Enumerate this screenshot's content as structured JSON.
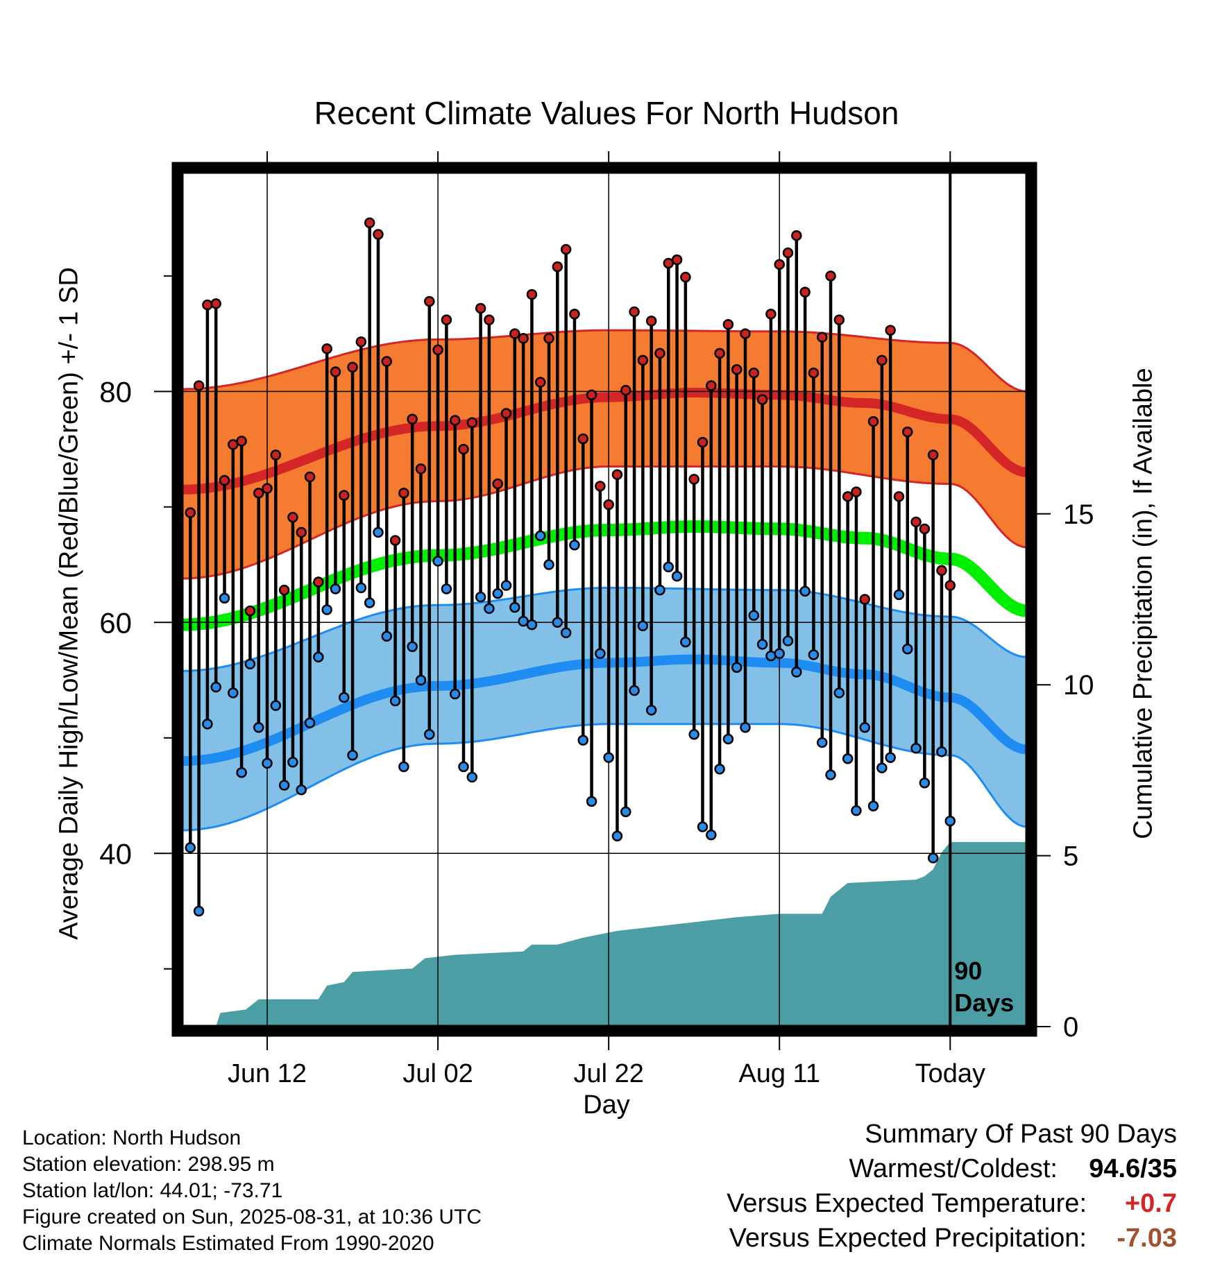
{
  "chart_data": {
    "type": "scatter",
    "title": "Recent Climate Values For North Hudson",
    "xlabel": "Day",
    "ylabel_left": "Average Daily High/Low/Mean (Red/Blue/Green) +/- 1 SD",
    "ylabel_right": "Cumulative Precipitation (in), If Available",
    "x_tick_labels": [
      "Jun 12",
      "Jul 02",
      "Jul 22",
      "Aug 11",
      "Today"
    ],
    "y_left_ticks": [
      40,
      60,
      80
    ],
    "y_right_ticks": [
      0,
      5,
      10,
      15
    ],
    "marker_label": [
      "90",
      "Days"
    ],
    "x_range_days": [
      -90,
      9
    ],
    "y_left_range": [
      25,
      99
    ],
    "y_right_range": [
      0,
      25
    ],
    "grid": true,
    "daily_high": [
      69.5,
      80.5,
      87.5,
      87.6,
      72.3,
      75.4,
      75.7,
      61.0,
      71.2,
      71.6,
      74.5,
      62.8,
      69.1,
      67.8,
      72.6,
      63.5,
      83.7,
      81.7,
      71.0,
      82.1,
      84.3,
      94.6,
      93.6,
      82.6,
      67.1,
      71.2,
      77.6,
      73.3,
      87.8,
      83.6,
      86.2,
      77.5,
      75.0,
      77.3,
      87.2,
      86.2,
      72.0,
      78.1,
      85.0,
      84.6,
      88.4,
      80.8,
      84.6,
      90.8,
      92.3,
      86.7,
      75.9,
      79.7,
      71.8,
      70.2,
      72.8,
      80.1,
      86.9,
      82.7,
      86.1,
      83.3,
      91.1,
      91.4,
      89.9,
      72.4,
      75.6,
      80.5,
      83.3,
      85.8,
      81.9,
      85.0,
      81.6,
      79.3,
      86.7,
      91.0,
      92.0,
      93.5,
      88.6,
      81.6,
      84.7,
      90.0,
      86.2,
      70.9,
      71.3,
      62.0,
      77.4,
      82.7,
      85.3,
      70.9,
      76.5,
      68.7,
      68.1,
      74.5,
      64.5,
      63.2
    ],
    "daily_low": [
      40.5,
      35.0,
      51.2,
      54.4,
      62.1,
      53.9,
      47.0,
      56.4,
      50.9,
      47.8,
      52.8,
      45.9,
      47.9,
      45.5,
      51.3,
      57.0,
      61.1,
      62.9,
      53.5,
      48.5,
      63.0,
      61.7,
      67.8,
      58.8,
      53.2,
      47.5,
      57.9,
      55.0,
      50.3,
      65.3,
      62.9,
      53.8,
      47.5,
      46.6,
      62.2,
      61.2,
      62.5,
      63.2,
      61.3,
      60.1,
      59.8,
      67.5,
      65.0,
      60.0,
      59.1,
      66.7,
      49.8,
      44.5,
      57.3,
      48.3,
      41.5,
      43.6,
      54.1,
      59.7,
      52.4,
      62.8,
      64.8,
      64.0,
      58.3,
      50.3,
      42.3,
      41.6,
      47.3,
      49.9,
      56.1,
      50.9,
      60.6,
      58.1,
      57.1,
      57.3,
      58.4,
      55.7,
      62.7,
      57.2,
      49.6,
      46.8,
      53.9,
      48.2,
      43.7,
      50.9,
      44.1,
      47.4,
      48.3,
      62.4,
      57.7,
      49.1,
      46.1,
      39.6,
      48.8,
      42.8
    ],
    "normal_high": [
      {
        "day": -90,
        "value": 71.5
      },
      {
        "day": -60,
        "value": 77.0
      },
      {
        "day": -40,
        "value": 79.5
      },
      {
        "day": -30,
        "value": 79.9
      },
      {
        "day": -20,
        "value": 79.7
      },
      {
        "day": -10,
        "value": 79.0
      },
      {
        "day": 0,
        "value": 77.6
      },
      {
        "day": 9,
        "value": 73.0
      }
    ],
    "normal_high_sd": [
      {
        "day": -90,
        "lo": 63.8,
        "hi": 80.2
      },
      {
        "day": -60,
        "lo": 70.5,
        "hi": 84.5
      },
      {
        "day": -40,
        "lo": 73.5,
        "hi": 85.3
      },
      {
        "day": -20,
        "lo": 73.5,
        "hi": 85.2
      },
      {
        "day": 0,
        "lo": 72.0,
        "hi": 84.2
      },
      {
        "day": 9,
        "lo": 66.5,
        "hi": 80.0
      }
    ],
    "normal_low": [
      {
        "day": -90,
        "value": 48.0
      },
      {
        "day": -60,
        "value": 54.5
      },
      {
        "day": -40,
        "value": 56.5
      },
      {
        "day": -30,
        "value": 56.8
      },
      {
        "day": -20,
        "value": 56.5
      },
      {
        "day": -10,
        "value": 55.5
      },
      {
        "day": 0,
        "value": 53.5
      },
      {
        "day": 9,
        "value": 49.0
      }
    ],
    "normal_low_sd": [
      {
        "day": -90,
        "lo": 42.0,
        "hi": 55.8
      },
      {
        "day": -60,
        "lo": 49.5,
        "hi": 61.5
      },
      {
        "day": -40,
        "lo": 51.2,
        "hi": 63.0
      },
      {
        "day": -20,
        "lo": 51.2,
        "hi": 62.8
      },
      {
        "day": 0,
        "lo": 48.5,
        "hi": 60.5
      },
      {
        "day": 9,
        "lo": 42.3,
        "hi": 57.0
      }
    ],
    "normal_mean": [
      {
        "day": -90,
        "value": 59.8
      },
      {
        "day": -60,
        "value": 65.8
      },
      {
        "day": -40,
        "value": 68.0
      },
      {
        "day": -30,
        "value": 68.3
      },
      {
        "day": -20,
        "value": 68.1
      },
      {
        "day": -10,
        "value": 67.3
      },
      {
        "day": 0,
        "value": 65.5
      },
      {
        "day": 9,
        "value": 61.0
      }
    ],
    "cumulative_precip": [
      {
        "day": -86,
        "value": 0.0
      },
      {
        "day": -85.5,
        "value": 0.4
      },
      {
        "day": -82.5,
        "value": 0.5
      },
      {
        "day": -81,
        "value": 0.8
      },
      {
        "day": -74,
        "value": 0.8
      },
      {
        "day": -73,
        "value": 1.2
      },
      {
        "day": -71,
        "value": 1.3
      },
      {
        "day": -70,
        "value": 1.6
      },
      {
        "day": -63,
        "value": 1.7
      },
      {
        "day": -61.5,
        "value": 2.0
      },
      {
        "day": -58,
        "value": 2.1
      },
      {
        "day": -50,
        "value": 2.2
      },
      {
        "day": -49,
        "value": 2.4
      },
      {
        "day": -46,
        "value": 2.4
      },
      {
        "day": -43,
        "value": 2.6
      },
      {
        "day": -41,
        "value": 2.7
      },
      {
        "day": -39,
        "value": 2.8
      },
      {
        "day": -32,
        "value": 3.0
      },
      {
        "day": -25,
        "value": 3.2
      },
      {
        "day": -20,
        "value": 3.3
      },
      {
        "day": -15,
        "value": 3.3
      },
      {
        "day": -14,
        "value": 3.8
      },
      {
        "day": -12,
        "value": 4.2
      },
      {
        "day": -4,
        "value": 4.3
      },
      {
        "day": -3,
        "value": 4.4
      },
      {
        "day": -2,
        "value": 4.6
      },
      {
        "day": -1,
        "value": 5.1
      },
      {
        "day": 0,
        "value": 5.4
      },
      {
        "day": 9,
        "value": 5.4
      }
    ]
  },
  "info": {
    "location": "Location: North Hudson",
    "elevation": "Station elevation: 298.95 m",
    "latlon": "Station lat/lon: 44.01; -73.71",
    "created": "Figure created on Sun, 2025-08-31, at 10:36 UTC",
    "normals": "Climate Normals Estimated From 1990-2020"
  },
  "summary": {
    "title": "Summary Of Past 90 Days",
    "warm_cold_label": "Warmest/Coldest:",
    "warm_cold_value": "94.6/35",
    "temp_label": "Versus Expected Temperature:",
    "temp_value": "+0.7",
    "precip_label": "Versus Expected Precipitation:",
    "precip_value": "-7.03"
  },
  "colors": {
    "high_band": "#f47b30",
    "high_line": "#d42626",
    "low_band": "#82c0e8",
    "low_line": "#1e8cf0",
    "mean_line": "#00ee00",
    "precip": "#4a9ea4",
    "high_dot": "#c8231e",
    "low_dot": "#2a8ce8",
    "temp_positive": "#d42626",
    "precip_negative": "#a0522d"
  }
}
